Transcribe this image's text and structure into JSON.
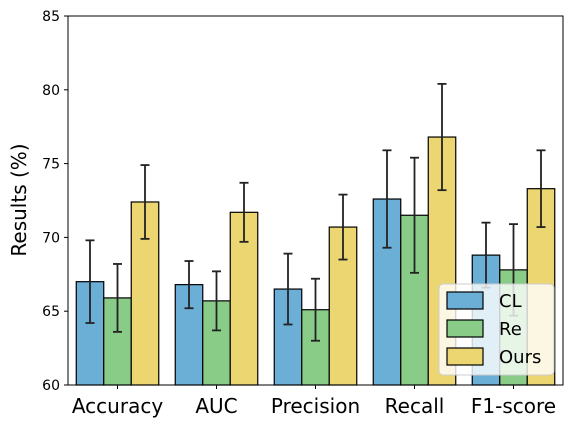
{
  "chart_data": {
    "type": "bar",
    "categories": [
      "Accuracy",
      "AUC",
      "Precision",
      "Recall",
      "F1-score"
    ],
    "series": [
      {
        "name": "CL",
        "color": "#6baed6",
        "values": [
          67.0,
          66.8,
          66.5,
          72.6,
          68.8
        ],
        "errors": [
          2.8,
          1.6,
          2.4,
          3.3,
          2.2
        ]
      },
      {
        "name": "Re",
        "color": "#88cc88",
        "values": [
          65.9,
          65.7,
          65.1,
          71.5,
          67.8
        ],
        "errors": [
          2.3,
          2.0,
          2.1,
          3.9,
          3.1
        ]
      },
      {
        "name": "Ours",
        "color": "#ecd672",
        "values": [
          72.4,
          71.7,
          70.7,
          76.8,
          73.3
        ],
        "errors": [
          2.5,
          2.0,
          2.2,
          3.6,
          2.6
        ]
      }
    ],
    "ylabel": "Results (%)",
    "xlabel": "",
    "ylim": [
      60,
      85
    ],
    "yticks": [
      60,
      65,
      70,
      75,
      80,
      85
    ],
    "legend_position": "bottom-right",
    "grid": false
  }
}
